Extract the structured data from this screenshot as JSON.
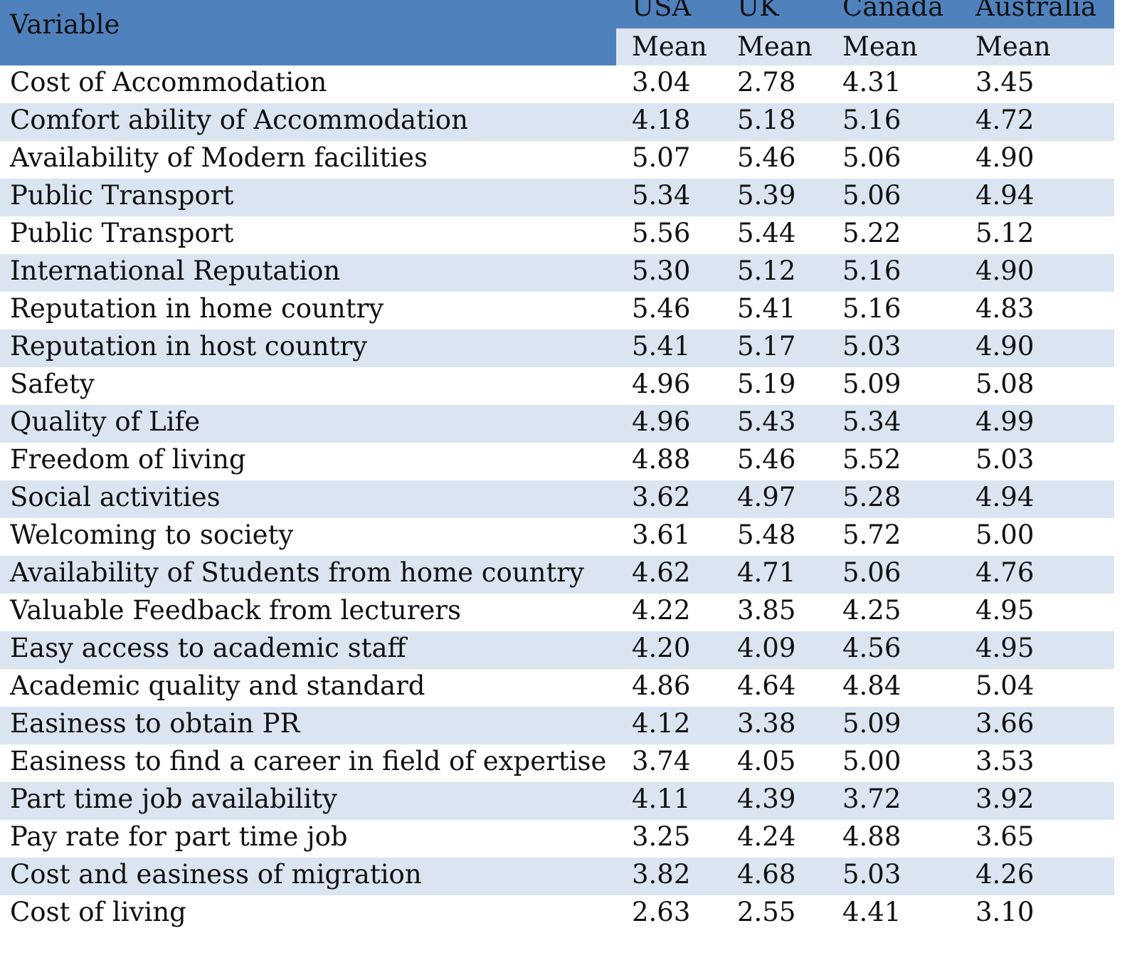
{
  "table": {
    "header": {
      "variable_label": "Variable",
      "countries": [
        "USA",
        "UK",
        "Canada",
        "Australia"
      ],
      "sub_labels": [
        "Mean",
        "Mean",
        "Mean",
        "Mean"
      ]
    },
    "rows": [
      {
        "variable": "Cost of Accommodation",
        "values": [
          "3.04",
          "2.78",
          "4.31",
          "3.45"
        ]
      },
      {
        "variable": "Comfort ability of Accommodation",
        "values": [
          "4.18",
          "5.18",
          "5.16",
          "4.72"
        ]
      },
      {
        "variable": "Availability of Modern facilities",
        "values": [
          "5.07",
          "5.46",
          "5.06",
          "4.90"
        ]
      },
      {
        "variable": "Public Transport",
        "values": [
          "5.34",
          "5.39",
          "5.06",
          "4.94"
        ]
      },
      {
        "variable": "Public Transport",
        "values": [
          "5.56",
          "5.44",
          "5.22",
          "5.12"
        ]
      },
      {
        "variable": "International Reputation",
        "values": [
          "5.30",
          "5.12",
          "5.16",
          "4.90"
        ]
      },
      {
        "variable": "Reputation in home country",
        "values": [
          "5.46",
          "5.41",
          "5.16",
          "4.83"
        ]
      },
      {
        "variable": "Reputation in host country",
        "values": [
          "5.41",
          "5.17",
          "5.03",
          "4.90"
        ]
      },
      {
        "variable": "Safety",
        "values": [
          "4.96",
          "5.19",
          "5.09",
          "5.08"
        ]
      },
      {
        "variable": "Quality of Life",
        "values": [
          "4.96",
          "5.43",
          "5.34",
          "4.99"
        ]
      },
      {
        "variable": "Freedom of living",
        "values": [
          "4.88",
          "5.46",
          "5.52",
          "5.03"
        ]
      },
      {
        "variable": "Social activities",
        "values": [
          "3.62",
          "4.97",
          "5.28",
          "4.94"
        ]
      },
      {
        "variable": "Welcoming to society",
        "values": [
          "3.61",
          "5.48",
          "5.72",
          "5.00"
        ]
      },
      {
        "variable": "Availability of Students from home country",
        "values": [
          "4.62",
          "4.71",
          "5.06",
          "4.76"
        ]
      },
      {
        "variable": "Valuable Feedback from lecturers",
        "values": [
          "4.22",
          "3.85",
          "4.25",
          "4.95"
        ]
      },
      {
        "variable": "Easy access to academic staff",
        "values": [
          "4.20",
          "4.09",
          "4.56",
          "4.95"
        ]
      },
      {
        "variable": "Academic quality and standard",
        "values": [
          "4.86",
          "4.64",
          "4.84",
          "5.04"
        ]
      },
      {
        "variable": "Easiness to obtain PR",
        "values": [
          "4.12",
          "3.38",
          "5.09",
          "3.66"
        ]
      },
      {
        "variable": "Easiness to find a career in field of expertise",
        "values": [
          "3.74",
          "4.05",
          "5.00",
          "3.53"
        ]
      },
      {
        "variable": "Part time job availability",
        "values": [
          "4.11",
          "4.39",
          "3.72",
          "3.92"
        ]
      },
      {
        "variable": "Pay rate for part time job",
        "values": [
          "3.25",
          "4.24",
          "4.88",
          "3.65"
        ]
      },
      {
        "variable": "Cost and easiness of migration",
        "values": [
          "3.82",
          "4.68",
          "5.03",
          "4.26"
        ]
      },
      {
        "variable": "Cost of living",
        "values": [
          "2.63",
          "2.55",
          "4.41",
          "3.10"
        ]
      }
    ]
  },
  "colors": {
    "header_blue": "#4f81bd",
    "stripe_light": "#dbe5f1",
    "text": "#111111"
  }
}
